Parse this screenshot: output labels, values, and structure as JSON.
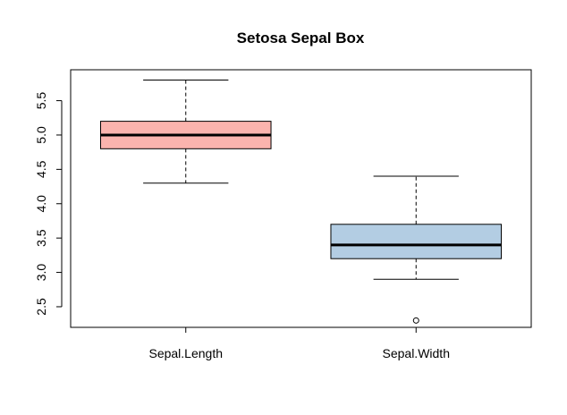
{
  "chart_data": {
    "type": "box",
    "title": "Setosa Sepal Box",
    "xlabel": "",
    "ylabel": "",
    "ylim": [
      2.2,
      5.95
    ],
    "yticks": [
      "2.5",
      "3.0",
      "3.5",
      "4.0",
      "4.5",
      "5.0",
      "5.5"
    ],
    "grid": false,
    "categories": [
      "Sepal.Length",
      "Sepal.Width"
    ],
    "boxes": [
      {
        "category": "Sepal.Length",
        "min": 4.3,
        "q1": 4.8,
        "median": 5.0,
        "q3": 5.2,
        "max": 5.8,
        "outliers": [],
        "fill": "#FBB4AE"
      },
      {
        "category": "Sepal.Width",
        "min": 2.9,
        "q1": 3.2,
        "median": 3.4,
        "q3": 3.7,
        "max": 4.4,
        "outliers": [
          2.3
        ],
        "fill": "#B3CDE3"
      }
    ]
  }
}
